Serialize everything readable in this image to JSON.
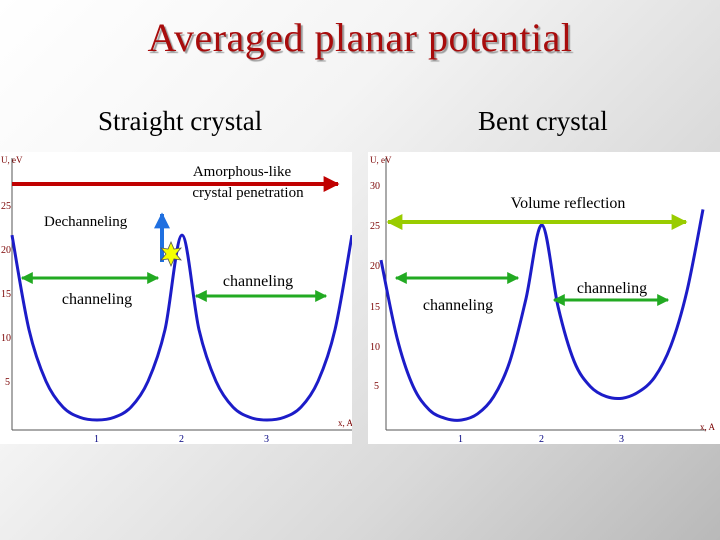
{
  "title": "Averaged planar potential",
  "subtitles": {
    "left": "Straight crystal",
    "right": "Bent crystal"
  },
  "axes": {
    "ylabel": "U, eV",
    "xlabel": "x, A"
  },
  "left_panel": {
    "labels": {
      "amorphous_line1": "Amorphous-like",
      "amorphous_line2": "crystal penetration",
      "dechanneling": "Dechanneling",
      "channeling_1": "channeling",
      "channeling_2": "channeling"
    }
  },
  "right_panel": {
    "labels": {
      "volume_reflection": "Volume reflection",
      "channeling_1": "channeling",
      "channeling_2": "channeling"
    }
  },
  "colors": {
    "title": "#a80c0c",
    "curve": "#1c1cc8",
    "amorphous_arrow": "#c00000",
    "volume_arrow": "#99cc00",
    "channeling_arrow": "#22aa22",
    "dechanneling_arrow": "#1f6fe0"
  },
  "chart_data": [
    {
      "type": "line",
      "title": "Straight crystal",
      "xlabel": "x, A",
      "ylabel": "U, eV",
      "yticks": [
        5,
        10,
        15,
        20,
        25
      ],
      "xticks": [
        1,
        2,
        3
      ],
      "series": [
        {
          "x": [
            0,
            0.2,
            0.4,
            0.6,
            0.8,
            1.0,
            1.2,
            1.4,
            1.6,
            1.8,
            2.0,
            2.2,
            2.4,
            2.6,
            2.8,
            3.0,
            3.2,
            3.4,
            3.6,
            3.8,
            4.0
          ],
          "y": [
            21.5,
            10.5,
            4.5,
            1.5,
            0.3,
            0,
            0.3,
            1.5,
            4.5,
            10.5,
            21.5,
            10.5,
            4.5,
            1.5,
            0.3,
            0,
            0.3,
            1.5,
            4.5,
            10.5,
            21.5
          ]
        }
      ]
    },
    {
      "type": "line",
      "title": "Bent crystal",
      "xlabel": "x, A",
      "ylabel": "U, eV",
      "yticks": [
        5,
        10,
        15,
        20,
        25,
        30
      ],
      "xticks": [
        1,
        2,
        3
      ],
      "series": [
        {
          "x": [
            0,
            0.2,
            0.4,
            0.6,
            0.8,
            1.0,
            1.2,
            1.4,
            1.6,
            1.8,
            2.0,
            2.2,
            2.4,
            2.6,
            2.8,
            3.0,
            3.2,
            3.4,
            3.6,
            3.8,
            4.0
          ],
          "y": [
            20.5,
            10.5,
            4.3,
            1.3,
            0.2,
            0,
            0.8,
            3.0,
            7.5,
            15.5,
            25.0,
            14.5,
            7.5,
            4.3,
            3.0,
            2.8,
            3.6,
            5.5,
            9.5,
            16.5,
            27.0
          ]
        }
      ]
    }
  ]
}
